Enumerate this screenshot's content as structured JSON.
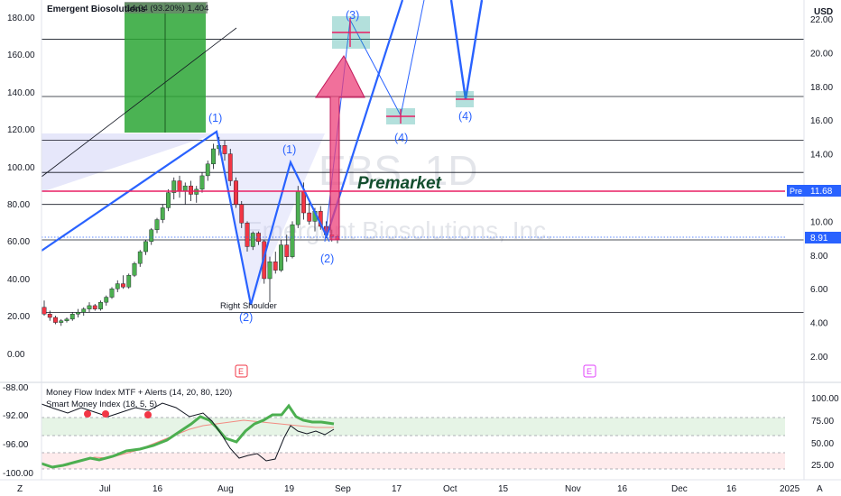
{
  "header": {
    "title": "Emergent Biosolutions",
    "measure_text": "14.04 (93.20%) 1,404",
    "currency": "USD",
    "icon": "chart-settings-icon"
  },
  "watermark": {
    "symbol": "EBS, 1D",
    "company": "Emergent Biosolutions, Inc."
  },
  "left_axis_ticks": [
    "180.00",
    "160.00",
    "140.00",
    "120.00",
    "100.00",
    "80.00",
    "60.00",
    "40.00",
    "20.00",
    "0.00"
  ],
  "right_axis_ticks": [
    "22.00",
    "20.00",
    "18.00",
    "16.00",
    "14.00",
    "12.00",
    "10.00",
    "8.00",
    "6.00",
    "4.00",
    "2.00"
  ],
  "price_labels": {
    "pre_tag": "Pre",
    "pre_value": "11.68",
    "last_value": "8.91"
  },
  "x_axis_ticks": [
    "Jul",
    "16",
    "Aug",
    "19",
    "Sep",
    "17",
    "Oct",
    "15",
    "Nov",
    "16",
    "Dec",
    "16",
    "2025"
  ],
  "annotations": {
    "premarket": "Premarket",
    "right_shoulder": "Right Shoulder",
    "earnings": "E",
    "waves": [
      "(1)",
      "(2)",
      "(1)",
      "(2)",
      "(3)",
      "(4)",
      "(4)"
    ]
  },
  "indicators": {
    "mfi_title": "Money Flow Index MTF + Alerts (14, 20, 80, 120)",
    "smi_title": "Smart Money Index (18, 5, 5)",
    "left_ticks": [
      "-88.00",
      "-92.00",
      "-96.00",
      "-100.00"
    ],
    "right_ticks": [
      "100.00",
      "75.00",
      "50.00",
      "25.00"
    ]
  },
  "footer": {
    "left_icon": "Z",
    "right_icon": "A"
  },
  "colors": {
    "bull": "#089981",
    "bear": "#f23645",
    "wave": "#2962ff",
    "pre": "#2962ff",
    "mfi": "#4caf50"
  },
  "chart_data": {
    "type": "candlestick",
    "symbol": "EBS",
    "interval": "1D",
    "series": [
      {
        "name": "candles",
        "values": [
          [
            4.9,
            5.3,
            4.4,
            4.5
          ],
          [
            4.5,
            4.7,
            4.1,
            4.3
          ],
          [
            4.3,
            4.4,
            3.9,
            4.0
          ],
          [
            4.0,
            4.2,
            3.8,
            4.1
          ],
          [
            4.1,
            4.3,
            4.0,
            4.2
          ],
          [
            4.2,
            4.6,
            4.1,
            4.5
          ],
          [
            4.5,
            4.8,
            4.3,
            4.6
          ],
          [
            4.6,
            4.9,
            4.4,
            4.8
          ],
          [
            4.8,
            5.2,
            4.6,
            5.0
          ],
          [
            5.0,
            5.1,
            4.7,
            4.8
          ],
          [
            4.8,
            5.3,
            4.7,
            5.2
          ],
          [
            5.2,
            5.6,
            5.0,
            5.5
          ],
          [
            5.5,
            6.1,
            5.4,
            6.0
          ],
          [
            6.0,
            6.5,
            5.8,
            6.3
          ],
          [
            6.3,
            6.8,
            6.0,
            6.1
          ],
          [
            6.1,
            6.9,
            6.0,
            6.8
          ],
          [
            6.8,
            7.6,
            6.7,
            7.5
          ],
          [
            7.5,
            8.3,
            7.3,
            8.2
          ],
          [
            8.2,
            8.9,
            8.0,
            8.8
          ],
          [
            8.8,
            9.6,
            8.6,
            9.5
          ],
          [
            9.5,
            10.2,
            9.3,
            10.1
          ],
          [
            10.1,
            11.0,
            9.9,
            10.8
          ],
          [
            10.8,
            11.9,
            10.6,
            11.7
          ],
          [
            11.7,
            12.6,
            11.3,
            12.4
          ],
          [
            12.4,
            12.7,
            11.4,
            11.8
          ],
          [
            11.8,
            12.3,
            11.0,
            12.1
          ],
          [
            12.1,
            12.4,
            11.2,
            11.6
          ],
          [
            11.6,
            12.1,
            11.1,
            11.9
          ],
          [
            11.9,
            12.9,
            11.7,
            12.7
          ],
          [
            12.7,
            13.6,
            12.4,
            13.4
          ],
          [
            13.4,
            14.6,
            13.1,
            14.3
          ],
          [
            14.3,
            15.0,
            13.9,
            14.5
          ],
          [
            14.5,
            14.8,
            13.6,
            14.0
          ],
          [
            14.0,
            14.3,
            12.1,
            12.4
          ],
          [
            12.4,
            12.6,
            10.8,
            11.0
          ],
          [
            11.0,
            11.2,
            9.6,
            9.9
          ],
          [
            9.9,
            10.0,
            8.2,
            8.5
          ],
          [
            8.5,
            9.4,
            8.3,
            9.3
          ],
          [
            9.3,
            9.4,
            8.6,
            8.8
          ],
          [
            8.8,
            8.9,
            6.3,
            6.6
          ],
          [
            6.6,
            7.9,
            5.2,
            7.6
          ],
          [
            7.6,
            8.2,
            6.9,
            7.1
          ],
          [
            7.1,
            8.9,
            7.0,
            8.6
          ],
          [
            8.6,
            9.2,
            7.6,
            7.9
          ],
          [
            7.9,
            10.0,
            7.8,
            9.8
          ],
          [
            9.8,
            12.1,
            9.6,
            11.8
          ],
          [
            11.8,
            12.3,
            10.1,
            10.5
          ],
          [
            10.5,
            11.1,
            9.8,
            10.0
          ],
          [
            10.0,
            10.8,
            9.4,
            10.6
          ],
          [
            10.6,
            10.9,
            9.5,
            9.7
          ],
          [
            9.7,
            10.0,
            9.0,
            9.2
          ],
          [
            9.2,
            9.5,
            8.8,
            9.1
          ],
          [
            9.1,
            9.2,
            8.7,
            8.9
          ]
        ]
      },
      {
        "name": "Money Flow Index MTF + Alerts (14, 20, 80, 120)",
        "values": []
      },
      {
        "name": "Smart Money Index (18, 5, 5)",
        "values": []
      }
    ],
    "projection_waves": [
      "(1)",
      "(2)",
      "(3)",
      "(4)"
    ],
    "horizontal_levels_usd": [
      20.8,
      17.4,
      14.8,
      12.9,
      11.0,
      8.9,
      4.6
    ],
    "pre_market": 11.68,
    "last": 8.91,
    "ylim_right": [
      1,
      22.8
    ],
    "ylim_left": [
      -20,
      190
    ]
  }
}
